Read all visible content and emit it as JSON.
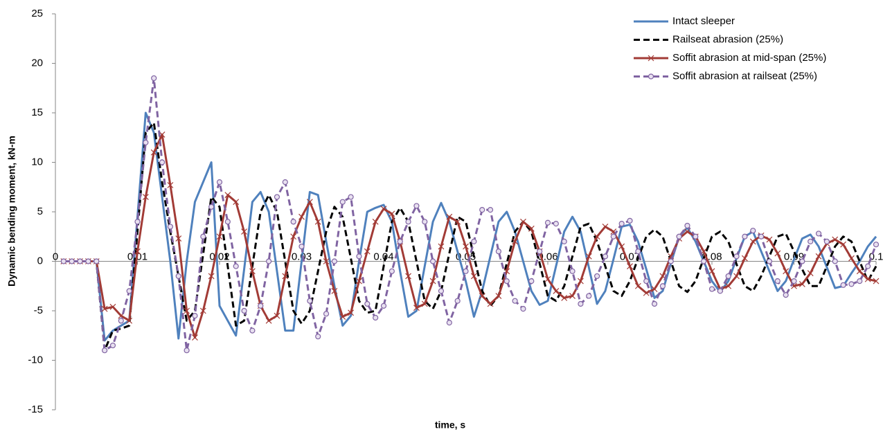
{
  "chart_data": {
    "type": "line",
    "x_label": "time, s",
    "y_label": "Dynamic bending moment, kN-m",
    "x": [
      0.001,
      0.002,
      0.003,
      0.004,
      0.005,
      0.006,
      0.007,
      0.008,
      0.009,
      0.01,
      0.011,
      0.012,
      0.013,
      0.014,
      0.015,
      0.016,
      0.017,
      0.018,
      0.019,
      0.02,
      0.021,
      0.022,
      0.023,
      0.024,
      0.025,
      0.026,
      0.027,
      0.028,
      0.029,
      0.03,
      0.031,
      0.032,
      0.033,
      0.034,
      0.035,
      0.036,
      0.037,
      0.038,
      0.039,
      0.04,
      0.041,
      0.042,
      0.043,
      0.044,
      0.045,
      0.046,
      0.047,
      0.048,
      0.049,
      0.05,
      0.051,
      0.052,
      0.053,
      0.054,
      0.055,
      0.056,
      0.057,
      0.058,
      0.059,
      0.06,
      0.061,
      0.062,
      0.063,
      0.064,
      0.065,
      0.066,
      0.067,
      0.068,
      0.069,
      0.07,
      0.071,
      0.072,
      0.073,
      0.074,
      0.075,
      0.076,
      0.077,
      0.078,
      0.079,
      0.08,
      0.081,
      0.082,
      0.083,
      0.084,
      0.085,
      0.086,
      0.087,
      0.088,
      0.089,
      0.09,
      0.091,
      0.092,
      0.093,
      0.094,
      0.095,
      0.096,
      0.097,
      0.098,
      0.099,
      0.1
    ],
    "series": [
      {
        "name": "Intact sleeper",
        "color": "#4f81bd",
        "dash": false,
        "marker": "none",
        "values": [
          0,
          0,
          0,
          0,
          0,
          -8,
          -7,
          -6.5,
          -6,
          4.5,
          15,
          13,
          6.5,
          0,
          -7.8,
          0,
          6,
          8,
          10,
          -4.5,
          -6,
          -7.5,
          -0.8,
          6,
          7,
          5,
          -1,
          -7,
          -7,
          0,
          7,
          6.7,
          2,
          -2.5,
          -6.5,
          -5.5,
          0,
          5,
          5.4,
          5.7,
          4,
          -1,
          -5.6,
          -5,
          -0.5,
          4,
          5.9,
          4,
          1,
          -2,
          -5.6,
          -3,
          0.5,
          4,
          5,
          3,
          0,
          -3,
          -4.4,
          -4,
          -0.5,
          3,
          4.5,
          3,
          -0.6,
          -4.3,
          -3,
          0.2,
          3.5,
          3.7,
          2,
          -0.8,
          -3.7,
          -3,
          -0.2,
          2.5,
          3.4,
          2,
          0,
          -2,
          -3.1,
          -2,
          0.3,
          2.5,
          3,
          1,
          -1,
          -3,
          -2,
          0.2,
          2.3,
          2.7,
          1.5,
          -0.6,
          -2.7,
          -2.5,
          -1.2,
          0,
          1.5,
          2.5
        ]
      },
      {
        "name": "Railseat abrasion (25%)",
        "color": "#000000",
        "dash": true,
        "marker": "none",
        "values": [
          0,
          0,
          0,
          0,
          0,
          -9,
          -7,
          -6.8,
          -6.5,
          3,
          13,
          14,
          8,
          3,
          -1.5,
          -6,
          -5,
          0.7,
          6.5,
          5.5,
          -0.5,
          -6.5,
          -6,
          -0.5,
          5,
          6.7,
          5,
          0,
          -5,
          -6.3,
          -5,
          -1,
          3,
          5.5,
          4.5,
          0.3,
          -4,
          -5.2,
          -5,
          -0.5,
          4,
          5.4,
          4,
          0,
          -4,
          -4.8,
          -3,
          0.8,
          4.5,
          4,
          0.5,
          -3,
          -4.5,
          -3.5,
          -0.2,
          3,
          4,
          3,
          -0.2,
          -3.5,
          -4,
          -2.5,
          0.5,
          3.5,
          3.8,
          2,
          -0.5,
          -3,
          -3.5,
          -2,
          0.3,
          2.5,
          3.2,
          2.5,
          0,
          -2.5,
          -3.1,
          -2,
          0.3,
          2.5,
          3,
          2,
          -0.3,
          -2.5,
          -3,
          -1.5,
          0.5,
          2.5,
          2.8,
          1,
          -0.8,
          -2.5,
          -2.5,
          -0.5,
          1.5,
          2.5,
          2,
          0,
          -2,
          -0.5
        ]
      },
      {
        "name": "Soffit abrasion at mid-span (25%)",
        "color": "#a23b36",
        "dash": false,
        "marker": "x",
        "values": [
          0,
          0,
          0,
          0,
          0,
          -4.8,
          -4.6,
          -5.5,
          -6,
          1,
          6.5,
          11,
          12.8,
          7.7,
          2.3,
          -5,
          -7.7,
          -5,
          -1.5,
          2.5,
          6.7,
          6,
          3,
          -1,
          -4.5,
          -6,
          -5.5,
          -1.5,
          2.5,
          4.5,
          6,
          4,
          0,
          -3,
          -5.6,
          -5.2,
          -2,
          1,
          4,
          5.3,
          4.8,
          2,
          -1.5,
          -4.7,
          -4.3,
          -2,
          1.5,
          4.5,
          4,
          1.5,
          -1.5,
          -3.5,
          -4.3,
          -3.5,
          -1,
          2,
          4,
          3.3,
          1,
          -1.8,
          -3,
          -3.7,
          -3.5,
          -2,
          0.5,
          2.5,
          3.5,
          3,
          1.5,
          -0.5,
          -2.5,
          -3.2,
          -2.8,
          -1.5,
          0.5,
          2.3,
          3,
          2.5,
          1,
          -1,
          -2.8,
          -2.5,
          -1.5,
          0.3,
          2,
          2.6,
          2.2,
          0.8,
          -1,
          -2.5,
          -2.3,
          -1.2,
          0.5,
          1.8,
          2.2,
          1.7,
          0.3,
          -1,
          -1.8,
          -2
        ]
      },
      {
        "name": "Soffit abrasion at railseat (25%)",
        "color": "#8064a2",
        "dash": true,
        "marker": "circle",
        "values": [
          0,
          0,
          0,
          0,
          0,
          -9,
          -8.5,
          -6,
          -3,
          4,
          12,
          18.5,
          10,
          3.5,
          -1.5,
          -9,
          -5.5,
          2.5,
          5.5,
          8,
          4,
          -0.5,
          -5,
          -7,
          -4.5,
          0,
          6.5,
          8,
          4,
          1.5,
          -4,
          -7.6,
          -5.3,
          0,
          6,
          6.5,
          0.5,
          -4.3,
          -5.7,
          -4.5,
          -1,
          2,
          4,
          5.6,
          4,
          0,
          -3,
          -6.2,
          -4,
          -1,
          2,
          5.2,
          5.2,
          1,
          -2,
          -4,
          -4.8,
          -2,
          1,
          3.9,
          3.8,
          2,
          -1,
          -4.3,
          -3.5,
          -1.5,
          0.5,
          2.5,
          3.8,
          4.1,
          1,
          -2,
          -4.3,
          -2.5,
          0,
          2.5,
          3.6,
          2.5,
          0,
          -2.8,
          -3,
          -1.5,
          0.5,
          2.5,
          3.1,
          2.5,
          0,
          -2,
          -3.4,
          -2,
          0,
          2,
          2.8,
          2,
          0,
          -2.4,
          -2.3,
          -2,
          -0.5,
          1.7
        ]
      }
    ],
    "xlim": [
      0,
      0.1
    ],
    "xticks": [
      0,
      0.01,
      0.02,
      0.03,
      0.04,
      0.05,
      0.06,
      0.07,
      0.08,
      0.09,
      0.1
    ],
    "ylim": [
      -15,
      25
    ],
    "yticks": [
      -15,
      -10,
      -5,
      0,
      5,
      10,
      15,
      20,
      25
    ],
    "grid": false,
    "legend": "upper right"
  }
}
